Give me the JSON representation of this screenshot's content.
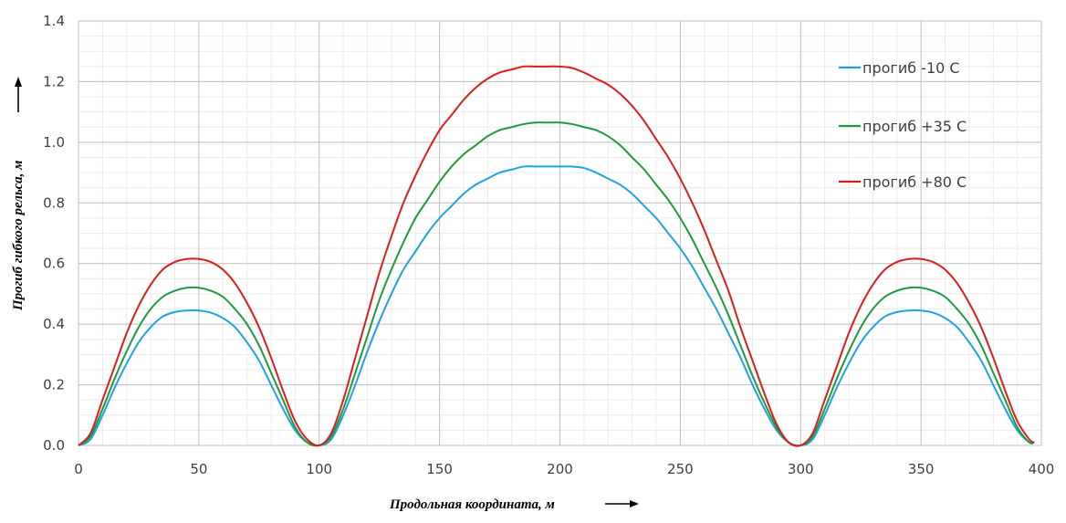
{
  "chart_data": {
    "type": "line",
    "title": "",
    "xlabel": "Продольная координата, м",
    "ylabel": "Прогиб гибкого рельса, м",
    "xlim": [
      0,
      400
    ],
    "ylim": [
      0,
      1.4
    ],
    "x_ticks": [
      "0",
      "50",
      "100",
      "150",
      "200",
      "250",
      "300",
      "350",
      "400"
    ],
    "y_ticks": [
      "0.0",
      "0.2",
      "0.4",
      "0.6",
      "0.8",
      "1.0",
      "1.2",
      "1.4"
    ],
    "grid": true,
    "legend_position": "top-right",
    "x": [
      0,
      5,
      10,
      15,
      20,
      25,
      30,
      35,
      40,
      45,
      50,
      55,
      60,
      65,
      70,
      75,
      80,
      85,
      90,
      95,
      100,
      105,
      110,
      115,
      120,
      125,
      130,
      135,
      140,
      145,
      150,
      155,
      160,
      165,
      170,
      175,
      180,
      185,
      190,
      195,
      200,
      205,
      210,
      215,
      220,
      225,
      230,
      235,
      240,
      245,
      250,
      255,
      260,
      265,
      270,
      275,
      280,
      285,
      290,
      295,
      300,
      305,
      310,
      315,
      320,
      325,
      330,
      335,
      340,
      345,
      350,
      355,
      360,
      365,
      370,
      375,
      380,
      385,
      390,
      395,
      397
    ],
    "series": [
      {
        "name": "прогиб -10 С",
        "color": "#1fa3e0",
        "values": [
          0.0,
          0.02,
          0.1,
          0.19,
          0.27,
          0.34,
          0.39,
          0.425,
          0.44,
          0.445,
          0.445,
          0.438,
          0.42,
          0.39,
          0.34,
          0.28,
          0.2,
          0.12,
          0.05,
          0.01,
          0.0,
          0.02,
          0.1,
          0.2,
          0.31,
          0.41,
          0.5,
          0.58,
          0.64,
          0.7,
          0.75,
          0.79,
          0.83,
          0.86,
          0.88,
          0.9,
          0.91,
          0.92,
          0.92,
          0.92,
          0.92,
          0.92,
          0.915,
          0.9,
          0.88,
          0.86,
          0.83,
          0.79,
          0.75,
          0.7,
          0.65,
          0.59,
          0.52,
          0.45,
          0.37,
          0.29,
          0.2,
          0.12,
          0.05,
          0.01,
          0.0,
          0.02,
          0.1,
          0.19,
          0.27,
          0.34,
          0.39,
          0.425,
          0.44,
          0.445,
          0.445,
          0.438,
          0.42,
          0.39,
          0.34,
          0.28,
          0.2,
          0.12,
          0.05,
          0.01,
          0.01
        ]
      },
      {
        "name": "прогиб +35 С",
        "color": "#1f9a3c",
        "values": [
          0.0,
          0.03,
          0.12,
          0.22,
          0.31,
          0.39,
          0.45,
          0.49,
          0.51,
          0.52,
          0.52,
          0.51,
          0.49,
          0.45,
          0.4,
          0.33,
          0.24,
          0.15,
          0.06,
          0.01,
          0.0,
          0.03,
          0.12,
          0.24,
          0.36,
          0.48,
          0.58,
          0.67,
          0.75,
          0.81,
          0.87,
          0.92,
          0.96,
          0.99,
          1.02,
          1.04,
          1.05,
          1.06,
          1.065,
          1.065,
          1.065,
          1.06,
          1.05,
          1.04,
          1.02,
          0.99,
          0.95,
          0.91,
          0.86,
          0.81,
          0.75,
          0.68,
          0.6,
          0.52,
          0.43,
          0.33,
          0.23,
          0.14,
          0.06,
          0.01,
          0.0,
          0.03,
          0.12,
          0.22,
          0.31,
          0.39,
          0.45,
          0.49,
          0.51,
          0.52,
          0.52,
          0.51,
          0.49,
          0.45,
          0.4,
          0.33,
          0.24,
          0.15,
          0.06,
          0.01,
          0.01
        ]
      },
      {
        "name": "прогиб +80 С",
        "color": "#dd1c1c",
        "values": [
          0.0,
          0.04,
          0.15,
          0.26,
          0.37,
          0.46,
          0.53,
          0.58,
          0.605,
          0.615,
          0.615,
          0.605,
          0.58,
          0.535,
          0.47,
          0.39,
          0.29,
          0.18,
          0.08,
          0.02,
          0.0,
          0.04,
          0.15,
          0.29,
          0.43,
          0.57,
          0.69,
          0.8,
          0.89,
          0.97,
          1.04,
          1.09,
          1.14,
          1.18,
          1.21,
          1.23,
          1.24,
          1.25,
          1.25,
          1.25,
          1.25,
          1.245,
          1.23,
          1.21,
          1.19,
          1.16,
          1.12,
          1.07,
          1.01,
          0.95,
          0.88,
          0.8,
          0.71,
          0.61,
          0.51,
          0.39,
          0.28,
          0.17,
          0.07,
          0.01,
          0.0,
          0.04,
          0.15,
          0.26,
          0.37,
          0.46,
          0.53,
          0.58,
          0.605,
          0.615,
          0.615,
          0.605,
          0.58,
          0.535,
          0.47,
          0.39,
          0.29,
          0.18,
          0.08,
          0.02,
          0.01
        ]
      }
    ]
  }
}
